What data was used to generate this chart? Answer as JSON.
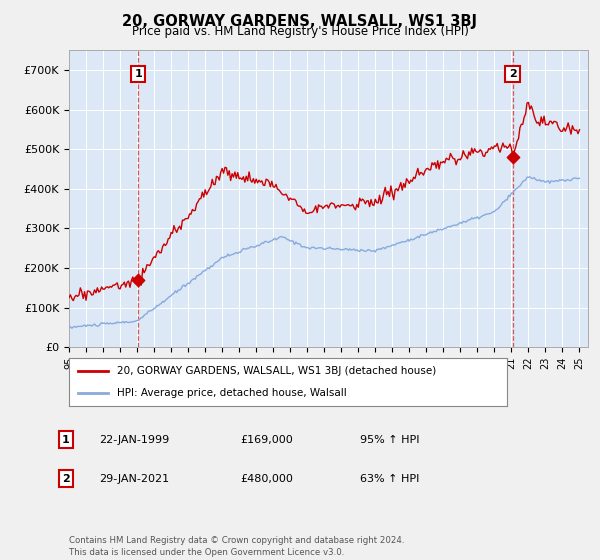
{
  "title": "20, GORWAY GARDENS, WALSALL, WS1 3BJ",
  "subtitle": "Price paid vs. HM Land Registry's House Price Index (HPI)",
  "ylim": [
    0,
    750000
  ],
  "yticks": [
    0,
    100000,
    200000,
    300000,
    400000,
    500000,
    600000,
    700000
  ],
  "ytick_labels": [
    "£0",
    "£100K",
    "£200K",
    "£300K",
    "£400K",
    "£500K",
    "£600K",
    "£700K"
  ],
  "legend_line1": "20, GORWAY GARDENS, WALSALL, WS1 3BJ (detached house)",
  "legend_line2": "HPI: Average price, detached house, Walsall",
  "transaction1_label": "1",
  "transaction1_date": "22-JAN-1999",
  "transaction1_price": "£169,000",
  "transaction1_hpi": "95% ↑ HPI",
  "transaction2_label": "2",
  "transaction2_date": "29-JAN-2021",
  "transaction2_price": "£480,000",
  "transaction2_hpi": "63% ↑ HPI",
  "footer": "Contains HM Land Registry data © Crown copyright and database right 2024.\nThis data is licensed under the Open Government Licence v3.0.",
  "house_color": "#cc0000",
  "hpi_color": "#88aadd",
  "vline_color": "#dd4444",
  "background_color": "#f0f0f0",
  "plot_bg_color": "#dce8f5",
  "grid_color": "#ffffff",
  "transaction1_x": 1999.07,
  "transaction1_y": 169000,
  "transaction2_x": 2021.07,
  "transaction2_y": 480000,
  "xlim_start": 1995.0,
  "xlim_end": 2025.5
}
